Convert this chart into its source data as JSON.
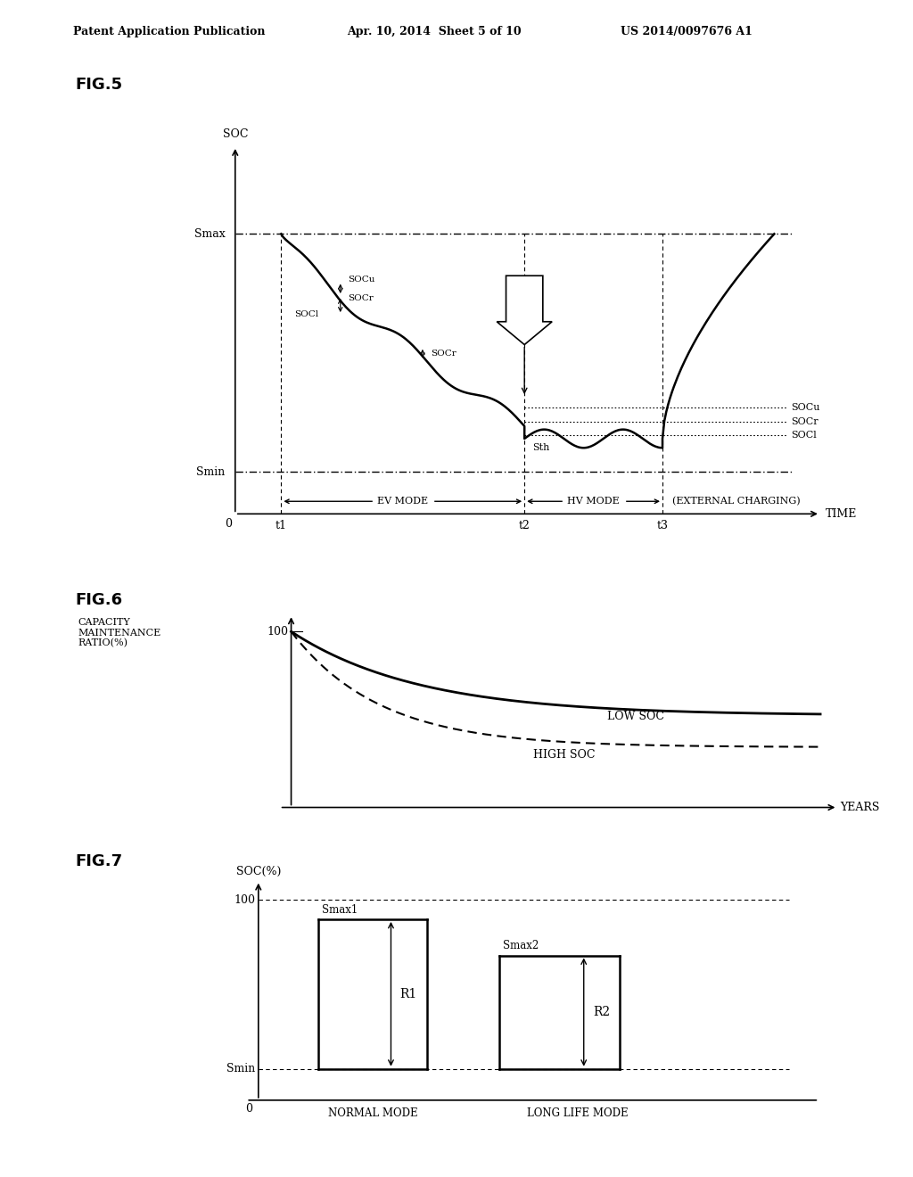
{
  "header_left": "Patent Application Publication",
  "header_mid": "Apr. 10, 2014  Sheet 5 of 10",
  "header_right": "US 2014/0097676 A1",
  "fig5_label": "FIG.5",
  "fig6_label": "FIG.6",
  "fig7_label": "FIG.7",
  "background": "#ffffff",
  "text_color": "#000000"
}
